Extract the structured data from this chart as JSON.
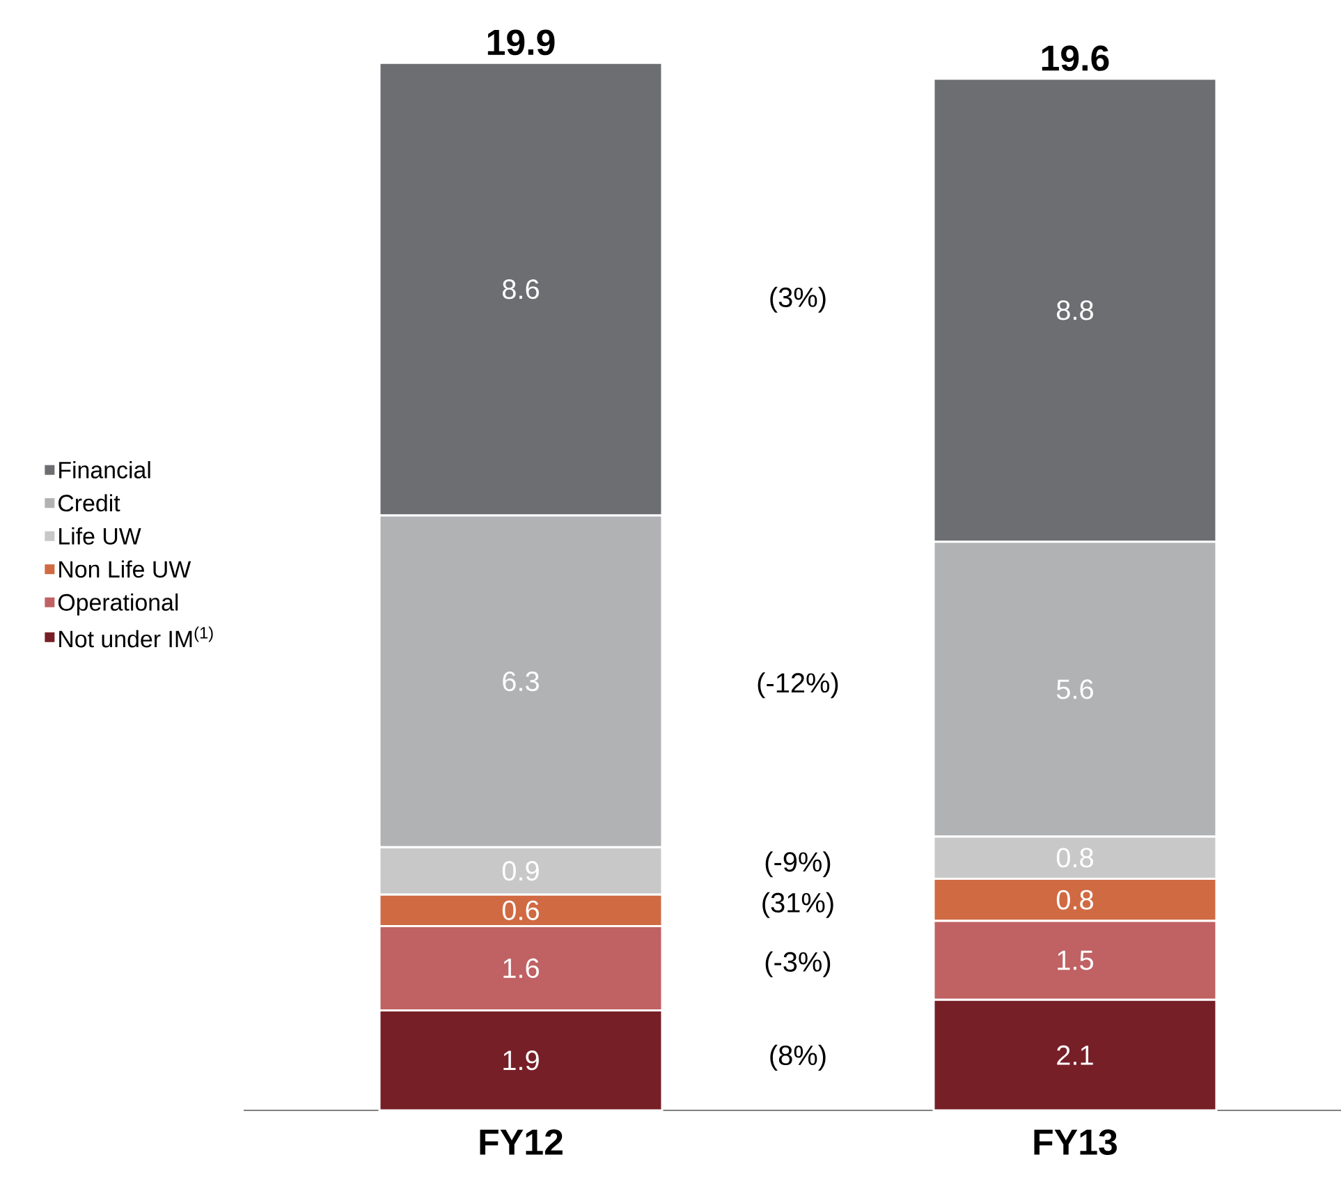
{
  "chart_data": {
    "type": "bar",
    "stacked": true,
    "data_labels": true,
    "legend": "left",
    "categories": [
      "FY12",
      "FY13"
    ],
    "series": [
      {
        "name": "Not under IM$^{(1)}$",
        "color": "#771f27",
        "values": [
          1.9,
          2.1
        ]
      },
      {
        "name": "Operational",
        "color": "#c06163",
        "values": [
          1.6,
          1.5
        ]
      },
      {
        "name": "Non Life UW",
        "color": "#d06a43",
        "values": [
          0.6,
          0.8
        ]
      },
      {
        "name": "Life UW",
        "color": "#c8c8c9",
        "values": [
          0.9,
          0.8
        ]
      },
      {
        "name": "Credit",
        "color": "#b1b2b4",
        "values": [
          6.3,
          5.6
        ]
      },
      {
        "name": "Financial",
        "color": "#6d6e71",
        "values": [
          8.6,
          8.8
        ]
      }
    ],
    "totals": [
      "19.9",
      "19.6"
    ],
    "annotations": [
      "(3%)",
      "(-12%)",
      "(-9%)",
      "(31%)",
      "(-3%)",
      "(8%)"
    ]
  }
}
